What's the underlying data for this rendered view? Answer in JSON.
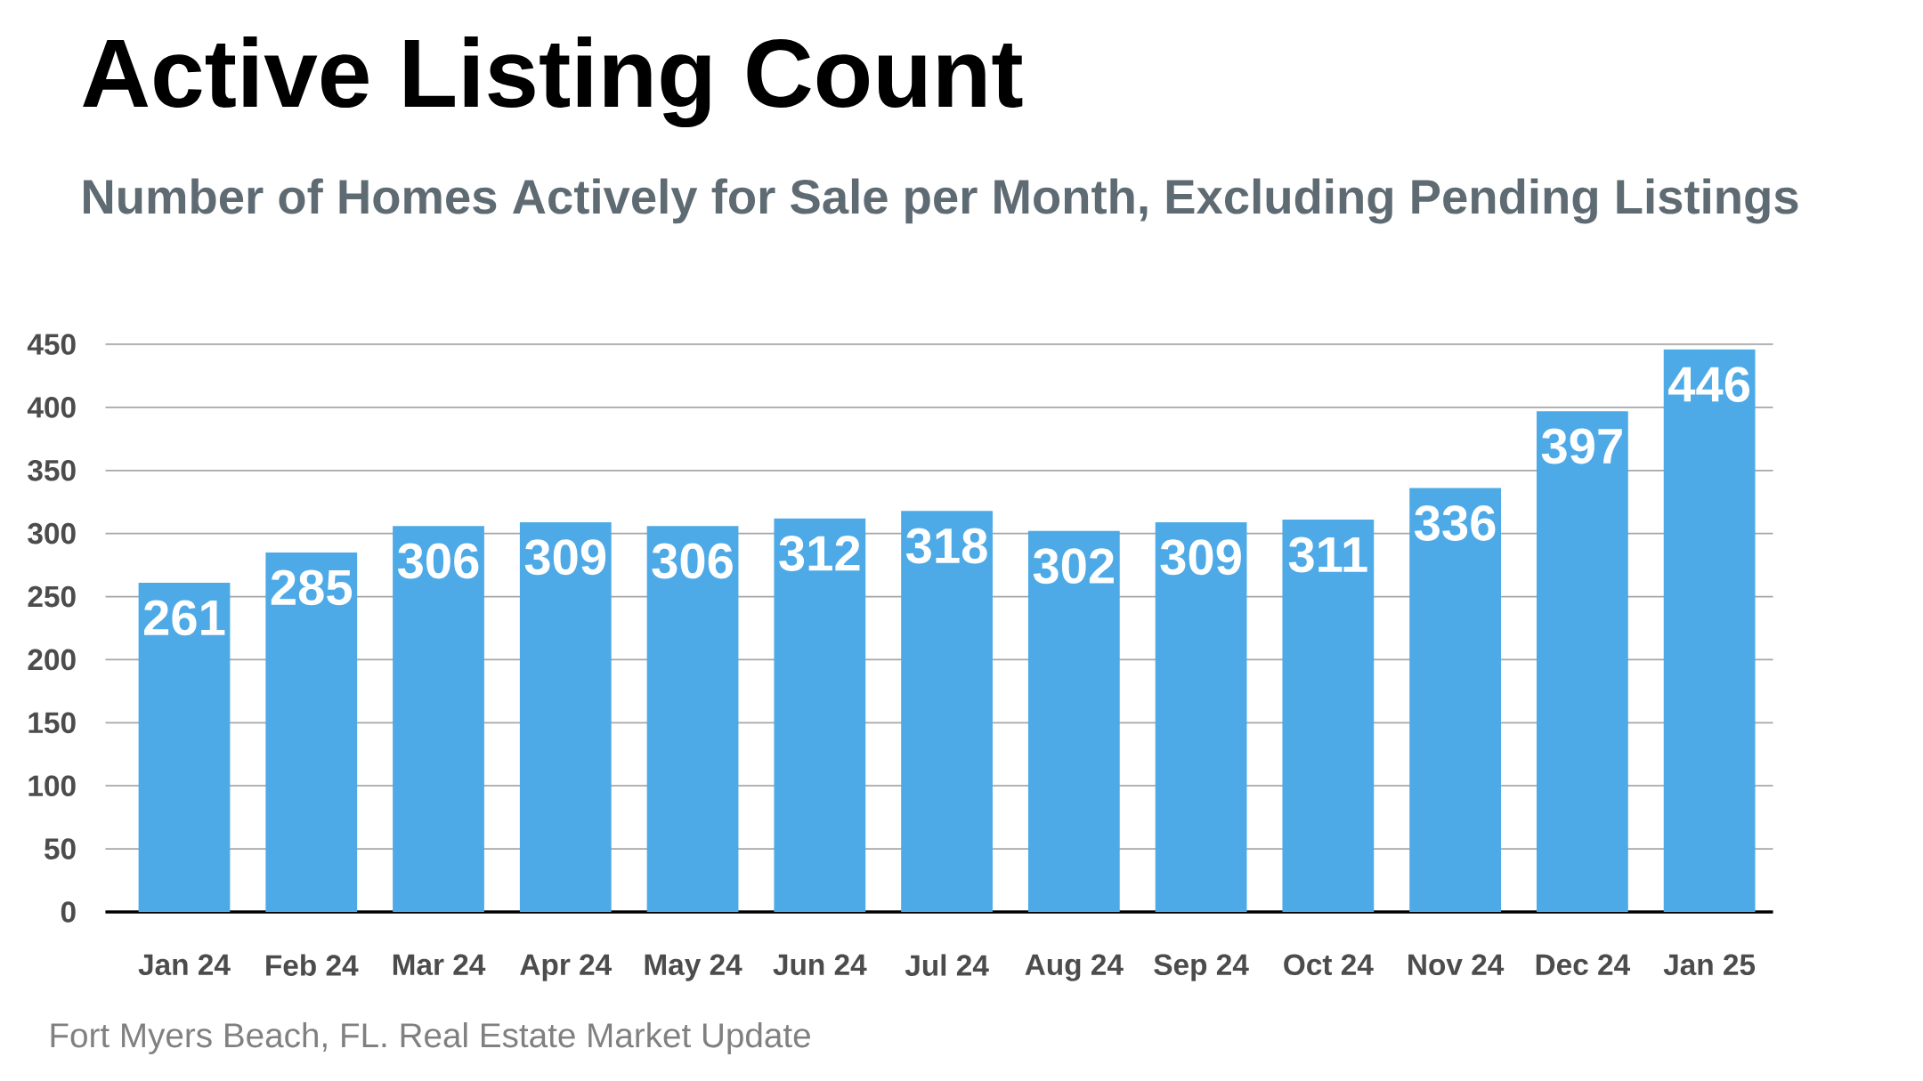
{
  "chart_data": {
    "type": "bar",
    "title": "Active Listing Count",
    "subtitle": "Number of Homes Actively for Sale per Month, Excluding Pending Listings",
    "categories": [
      "Jan 24",
      "Feb 24",
      "Mar 24",
      "Apr 24",
      "May 24",
      "Jun 24",
      "Jul 24",
      "Aug 24",
      "Sep 24",
      "Oct 24",
      "Nov 24",
      "Dec 24",
      "Jan 25"
    ],
    "values": [
      261,
      285,
      306,
      309,
      306,
      312,
      318,
      302,
      309,
      311,
      336,
      397,
      446
    ],
    "color": "#4eaae6",
    "ylim": [
      0,
      450
    ],
    "yticks": [
      0,
      50,
      100,
      150,
      200,
      250,
      300,
      350,
      400,
      450
    ],
    "grid": "y",
    "data_labels": true,
    "annotations": [
      "Fort Myers Beach, FL. Real Estate Market Update"
    ]
  }
}
